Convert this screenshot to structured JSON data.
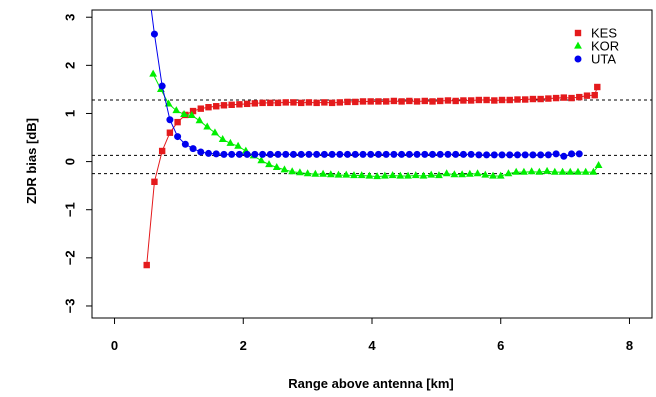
{
  "chart_data": {
    "type": "scatter",
    "xlabel": "Range above antenna [km]",
    "ylabel": "ZDR bias [dB]",
    "xlim": [
      -0.35,
      8.35
    ],
    "ylim": [
      -3.25,
      3.15
    ],
    "x_ticks": [
      0,
      2,
      4,
      6,
      8
    ],
    "x_tick_labels": [
      "0",
      "2",
      "4",
      "6",
      "8"
    ],
    "y_ticks": [
      -3,
      -2,
      -1,
      0,
      1,
      2,
      3
    ],
    "y_tick_labels": [
      "−3",
      "−2",
      "−1",
      "0",
      "1",
      "2",
      "3"
    ],
    "legend_position": "top-right",
    "reference_lines": [
      1.28,
      0.13,
      -0.25
    ],
    "series": [
      {
        "name": "KES",
        "color": "#e41a1c",
        "marker": "square",
        "points": [
          [
            0.5,
            -2.15
          ],
          [
            0.62,
            -0.42
          ],
          [
            0.74,
            0.22
          ],
          [
            0.86,
            0.6
          ],
          [
            0.98,
            0.82
          ],
          [
            1.1,
            0.97
          ],
          [
            1.22,
            1.05
          ],
          [
            1.34,
            1.1
          ],
          [
            1.46,
            1.13
          ],
          [
            1.58,
            1.15
          ],
          [
            1.7,
            1.17
          ],
          [
            1.82,
            1.18
          ],
          [
            1.94,
            1.19
          ],
          [
            2.06,
            1.2
          ],
          [
            2.18,
            1.21
          ],
          [
            2.3,
            1.22
          ],
          [
            2.42,
            1.22
          ],
          [
            2.54,
            1.22
          ],
          [
            2.66,
            1.23
          ],
          [
            2.78,
            1.23
          ],
          [
            2.9,
            1.22
          ],
          [
            3.02,
            1.23
          ],
          [
            3.14,
            1.22
          ],
          [
            3.26,
            1.23
          ],
          [
            3.38,
            1.22
          ],
          [
            3.5,
            1.23
          ],
          [
            3.62,
            1.24
          ],
          [
            3.74,
            1.24
          ],
          [
            3.86,
            1.25
          ],
          [
            3.98,
            1.25
          ],
          [
            4.1,
            1.25
          ],
          [
            4.22,
            1.25
          ],
          [
            4.34,
            1.26
          ],
          [
            4.46,
            1.25
          ],
          [
            4.58,
            1.26
          ],
          [
            4.7,
            1.25
          ],
          [
            4.82,
            1.26
          ],
          [
            4.94,
            1.25
          ],
          [
            5.06,
            1.26
          ],
          [
            5.18,
            1.27
          ],
          [
            5.3,
            1.26
          ],
          [
            5.42,
            1.27
          ],
          [
            5.54,
            1.27
          ],
          [
            5.66,
            1.28
          ],
          [
            5.78,
            1.28
          ],
          [
            5.9,
            1.27
          ],
          [
            6.02,
            1.28
          ],
          [
            6.14,
            1.28
          ],
          [
            6.26,
            1.29
          ],
          [
            6.38,
            1.29
          ],
          [
            6.5,
            1.3
          ],
          [
            6.62,
            1.3
          ],
          [
            6.74,
            1.31
          ],
          [
            6.86,
            1.32
          ],
          [
            6.98,
            1.33
          ],
          [
            7.1,
            1.32
          ],
          [
            7.22,
            1.34
          ],
          [
            7.34,
            1.37
          ],
          [
            7.46,
            1.38
          ],
          [
            7.5,
            1.55
          ]
        ]
      },
      {
        "name": "KOR",
        "color": "#00ee00",
        "marker": "triangle",
        "points": [
          [
            0.6,
            1.82
          ],
          [
            0.72,
            1.5
          ],
          [
            0.84,
            1.2
          ],
          [
            0.96,
            1.06
          ],
          [
            1.08,
            0.98
          ],
          [
            1.2,
            0.96
          ],
          [
            1.32,
            0.85
          ],
          [
            1.44,
            0.72
          ],
          [
            1.56,
            0.6
          ],
          [
            1.68,
            0.46
          ],
          [
            1.8,
            0.38
          ],
          [
            1.92,
            0.32
          ],
          [
            2.04,
            0.22
          ],
          [
            2.16,
            0.12
          ],
          [
            2.28,
            0.02
          ],
          [
            2.4,
            -0.06
          ],
          [
            2.52,
            -0.12
          ],
          [
            2.64,
            -0.17
          ],
          [
            2.76,
            -0.21
          ],
          [
            2.88,
            -0.23
          ],
          [
            3.0,
            -0.25
          ],
          [
            3.12,
            -0.26
          ],
          [
            3.24,
            -0.26
          ],
          [
            3.36,
            -0.27
          ],
          [
            3.48,
            -0.28
          ],
          [
            3.6,
            -0.28
          ],
          [
            3.72,
            -0.29
          ],
          [
            3.84,
            -0.29
          ],
          [
            3.96,
            -0.3
          ],
          [
            4.08,
            -0.31
          ],
          [
            4.2,
            -0.3
          ],
          [
            4.32,
            -0.29
          ],
          [
            4.44,
            -0.3
          ],
          [
            4.56,
            -0.3
          ],
          [
            4.68,
            -0.29
          ],
          [
            4.8,
            -0.3
          ],
          [
            4.92,
            -0.28
          ],
          [
            5.04,
            -0.29
          ],
          [
            5.16,
            -0.25
          ],
          [
            5.28,
            -0.27
          ],
          [
            5.4,
            -0.27
          ],
          [
            5.52,
            -0.26
          ],
          [
            5.64,
            -0.25
          ],
          [
            5.76,
            -0.28
          ],
          [
            5.88,
            -0.3
          ],
          [
            6.0,
            -0.3
          ],
          [
            6.12,
            -0.25
          ],
          [
            6.24,
            -0.22
          ],
          [
            6.36,
            -0.22
          ],
          [
            6.48,
            -0.21
          ],
          [
            6.6,
            -0.22
          ],
          [
            6.72,
            -0.2
          ],
          [
            6.84,
            -0.22
          ],
          [
            6.96,
            -0.22
          ],
          [
            7.08,
            -0.22
          ],
          [
            7.2,
            -0.22
          ],
          [
            7.32,
            -0.22
          ],
          [
            7.44,
            -0.22
          ],
          [
            7.52,
            -0.08
          ]
        ]
      },
      {
        "name": "UTA",
        "color": "#0000ee",
        "marker": "circle",
        "points": [
          [
            0.62,
            2.65
          ],
          [
            0.74,
            1.57
          ],
          [
            0.86,
            0.87
          ],
          [
            0.98,
            0.52
          ],
          [
            1.1,
            0.36
          ],
          [
            1.22,
            0.27
          ],
          [
            1.34,
            0.2
          ],
          [
            1.46,
            0.17
          ],
          [
            1.58,
            0.16
          ],
          [
            1.7,
            0.15
          ],
          [
            1.82,
            0.15
          ],
          [
            1.94,
            0.15
          ],
          [
            2.06,
            0.15
          ],
          [
            2.18,
            0.15
          ],
          [
            2.3,
            0.15
          ],
          [
            2.42,
            0.15
          ],
          [
            2.54,
            0.15
          ],
          [
            2.66,
            0.15
          ],
          [
            2.78,
            0.15
          ],
          [
            2.9,
            0.15
          ],
          [
            3.02,
            0.15
          ],
          [
            3.14,
            0.15
          ],
          [
            3.26,
            0.15
          ],
          [
            3.38,
            0.15
          ],
          [
            3.5,
            0.15
          ],
          [
            3.62,
            0.15
          ],
          [
            3.74,
            0.15
          ],
          [
            3.86,
            0.15
          ],
          [
            3.98,
            0.15
          ],
          [
            4.1,
            0.15
          ],
          [
            4.22,
            0.15
          ],
          [
            4.34,
            0.15
          ],
          [
            4.46,
            0.15
          ],
          [
            4.58,
            0.15
          ],
          [
            4.7,
            0.15
          ],
          [
            4.82,
            0.15
          ],
          [
            4.94,
            0.15
          ],
          [
            5.06,
            0.15
          ],
          [
            5.18,
            0.15
          ],
          [
            5.3,
            0.15
          ],
          [
            5.42,
            0.15
          ],
          [
            5.54,
            0.15
          ],
          [
            5.66,
            0.14
          ],
          [
            5.78,
            0.14
          ],
          [
            5.9,
            0.14
          ],
          [
            6.02,
            0.14
          ],
          [
            6.14,
            0.14
          ],
          [
            6.26,
            0.14
          ],
          [
            6.38,
            0.14
          ],
          [
            6.5,
            0.14
          ],
          [
            6.62,
            0.14
          ],
          [
            6.74,
            0.14
          ],
          [
            6.86,
            0.16
          ],
          [
            6.98,
            0.11
          ],
          [
            7.1,
            0.16
          ],
          [
            7.22,
            0.16
          ]
        ]
      }
    ]
  }
}
